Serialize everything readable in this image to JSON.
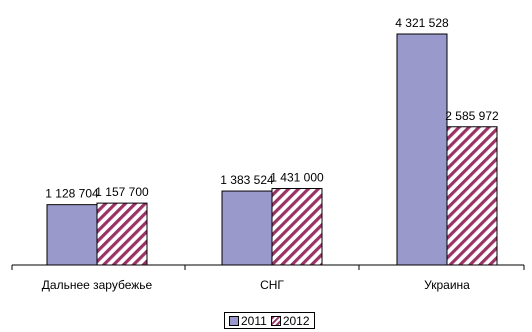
{
  "chart_data": {
    "type": "bar",
    "categories": [
      "Дальнее зарубежье",
      "СНГ",
      "Украина"
    ],
    "series": [
      {
        "name": "2011",
        "values": [
          1128704,
          1383524,
          4321528
        ],
        "labels": [
          "1 128 704",
          "1 383 524",
          "4 321 528"
        ],
        "color": "#9999cc"
      },
      {
        "name": "2012",
        "values": [
          1157700,
          1431000,
          2585972
        ],
        "labels": [
          "1 157 700",
          "1 431 000",
          "2 585 972"
        ],
        "color": "#993366"
      }
    ],
    "ylim": [
      0,
      4321528
    ],
    "grid": false,
    "legend_position": "bottom"
  }
}
